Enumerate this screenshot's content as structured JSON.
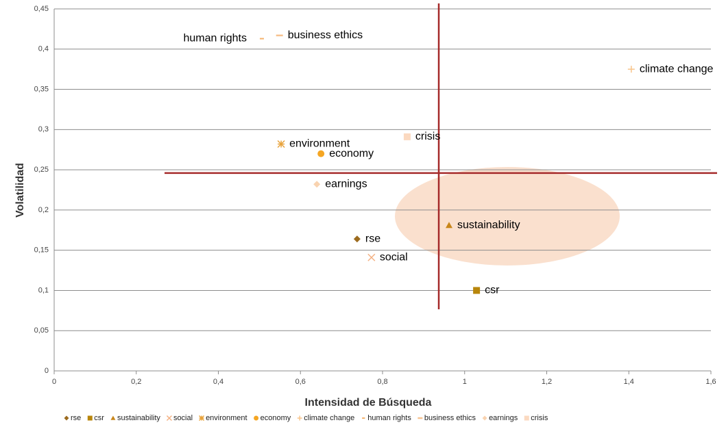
{
  "chart_data": {
    "type": "scatter",
    "x_label": "Intensidad de Búsqueda",
    "y_label": "Volatilidad",
    "xlim": [
      0,
      1.6
    ],
    "ylim": [
      0,
      0.45
    ],
    "xticks": [
      0,
      {
        "value": 0.2,
        "label": "0,2"
      },
      {
        "value": 0.4,
        "label": "0,4"
      },
      {
        "value": 0.6,
        "label": "0,6"
      },
      {
        "value": 0.8,
        "label": "0,8"
      },
      1,
      {
        "value": 1.2,
        "label": "1,2"
      },
      {
        "value": 1.4,
        "label": "1,4"
      },
      {
        "value": 1.6,
        "label": "1,6"
      }
    ],
    "yticks": [
      0,
      {
        "value": 0.05,
        "label": "0,05"
      },
      {
        "value": 0.1,
        "label": "0,1"
      },
      {
        "value": 0.15,
        "label": "0,15"
      },
      {
        "value": 0.2,
        "label": "0,2"
      },
      {
        "value": 0.25,
        "label": "0,25"
      },
      {
        "value": 0.3,
        "label": "0,3"
      },
      {
        "value": 0.35,
        "label": "0,35"
      },
      {
        "value": 0.4,
        "label": "0,4"
      },
      {
        "value": 0.45,
        "label": "0,45"
      }
    ],
    "grid": true,
    "legend": "bottom",
    "reference_lines": {
      "x": 0.937,
      "y": 0.246,
      "color": "#a52a2a"
    },
    "series": [
      {
        "name": "rse",
        "color": "#9c6b1e",
        "marker": "diamond",
        "x": [
          0.738
        ],
        "values": [
          0.164
        ]
      },
      {
        "name": "csr",
        "color": "#b8860b",
        "marker": "square",
        "x": [
          1.029
        ],
        "values": [
          0.1
        ]
      },
      {
        "name": "sustainability",
        "color": "#c8861a",
        "marker": "triangle",
        "x": [
          0.962
        ],
        "values": [
          0.181
        ]
      },
      {
        "name": "social",
        "color": "#f4b183",
        "marker": "x",
        "x": [
          0.773
        ],
        "values": [
          0.141
        ]
      },
      {
        "name": "environment",
        "color": "#e8a33c",
        "marker": "asterisk",
        "x": [
          0.553
        ],
        "values": [
          0.282
        ]
      },
      {
        "name": "economy",
        "color": "#f5a623",
        "marker": "circle",
        "x": [
          0.65
        ],
        "values": [
          0.27
        ]
      },
      {
        "name": "climate change",
        "color": "#f8c48a",
        "marker": "plus",
        "x": [
          1.406
        ],
        "values": [
          0.375
        ]
      },
      {
        "name": "human rights",
        "color": "#f5b26b",
        "marker": "dash",
        "x": [
          0.506
        ],
        "values": [
          0.413
        ]
      },
      {
        "name": "business ethics",
        "color": "#f7c28f",
        "marker": "longdash",
        "x": [
          0.549
        ],
        "values": [
          0.417
        ]
      },
      {
        "name": "earnings",
        "color": "#f9d3b0",
        "marker": "diamond",
        "x": [
          0.64
        ],
        "values": [
          0.232
        ]
      },
      {
        "name": "crisis",
        "color": "#fbd9c0",
        "marker": "square",
        "x": [
          0.86
        ],
        "values": [
          0.291
        ]
      }
    ]
  }
}
